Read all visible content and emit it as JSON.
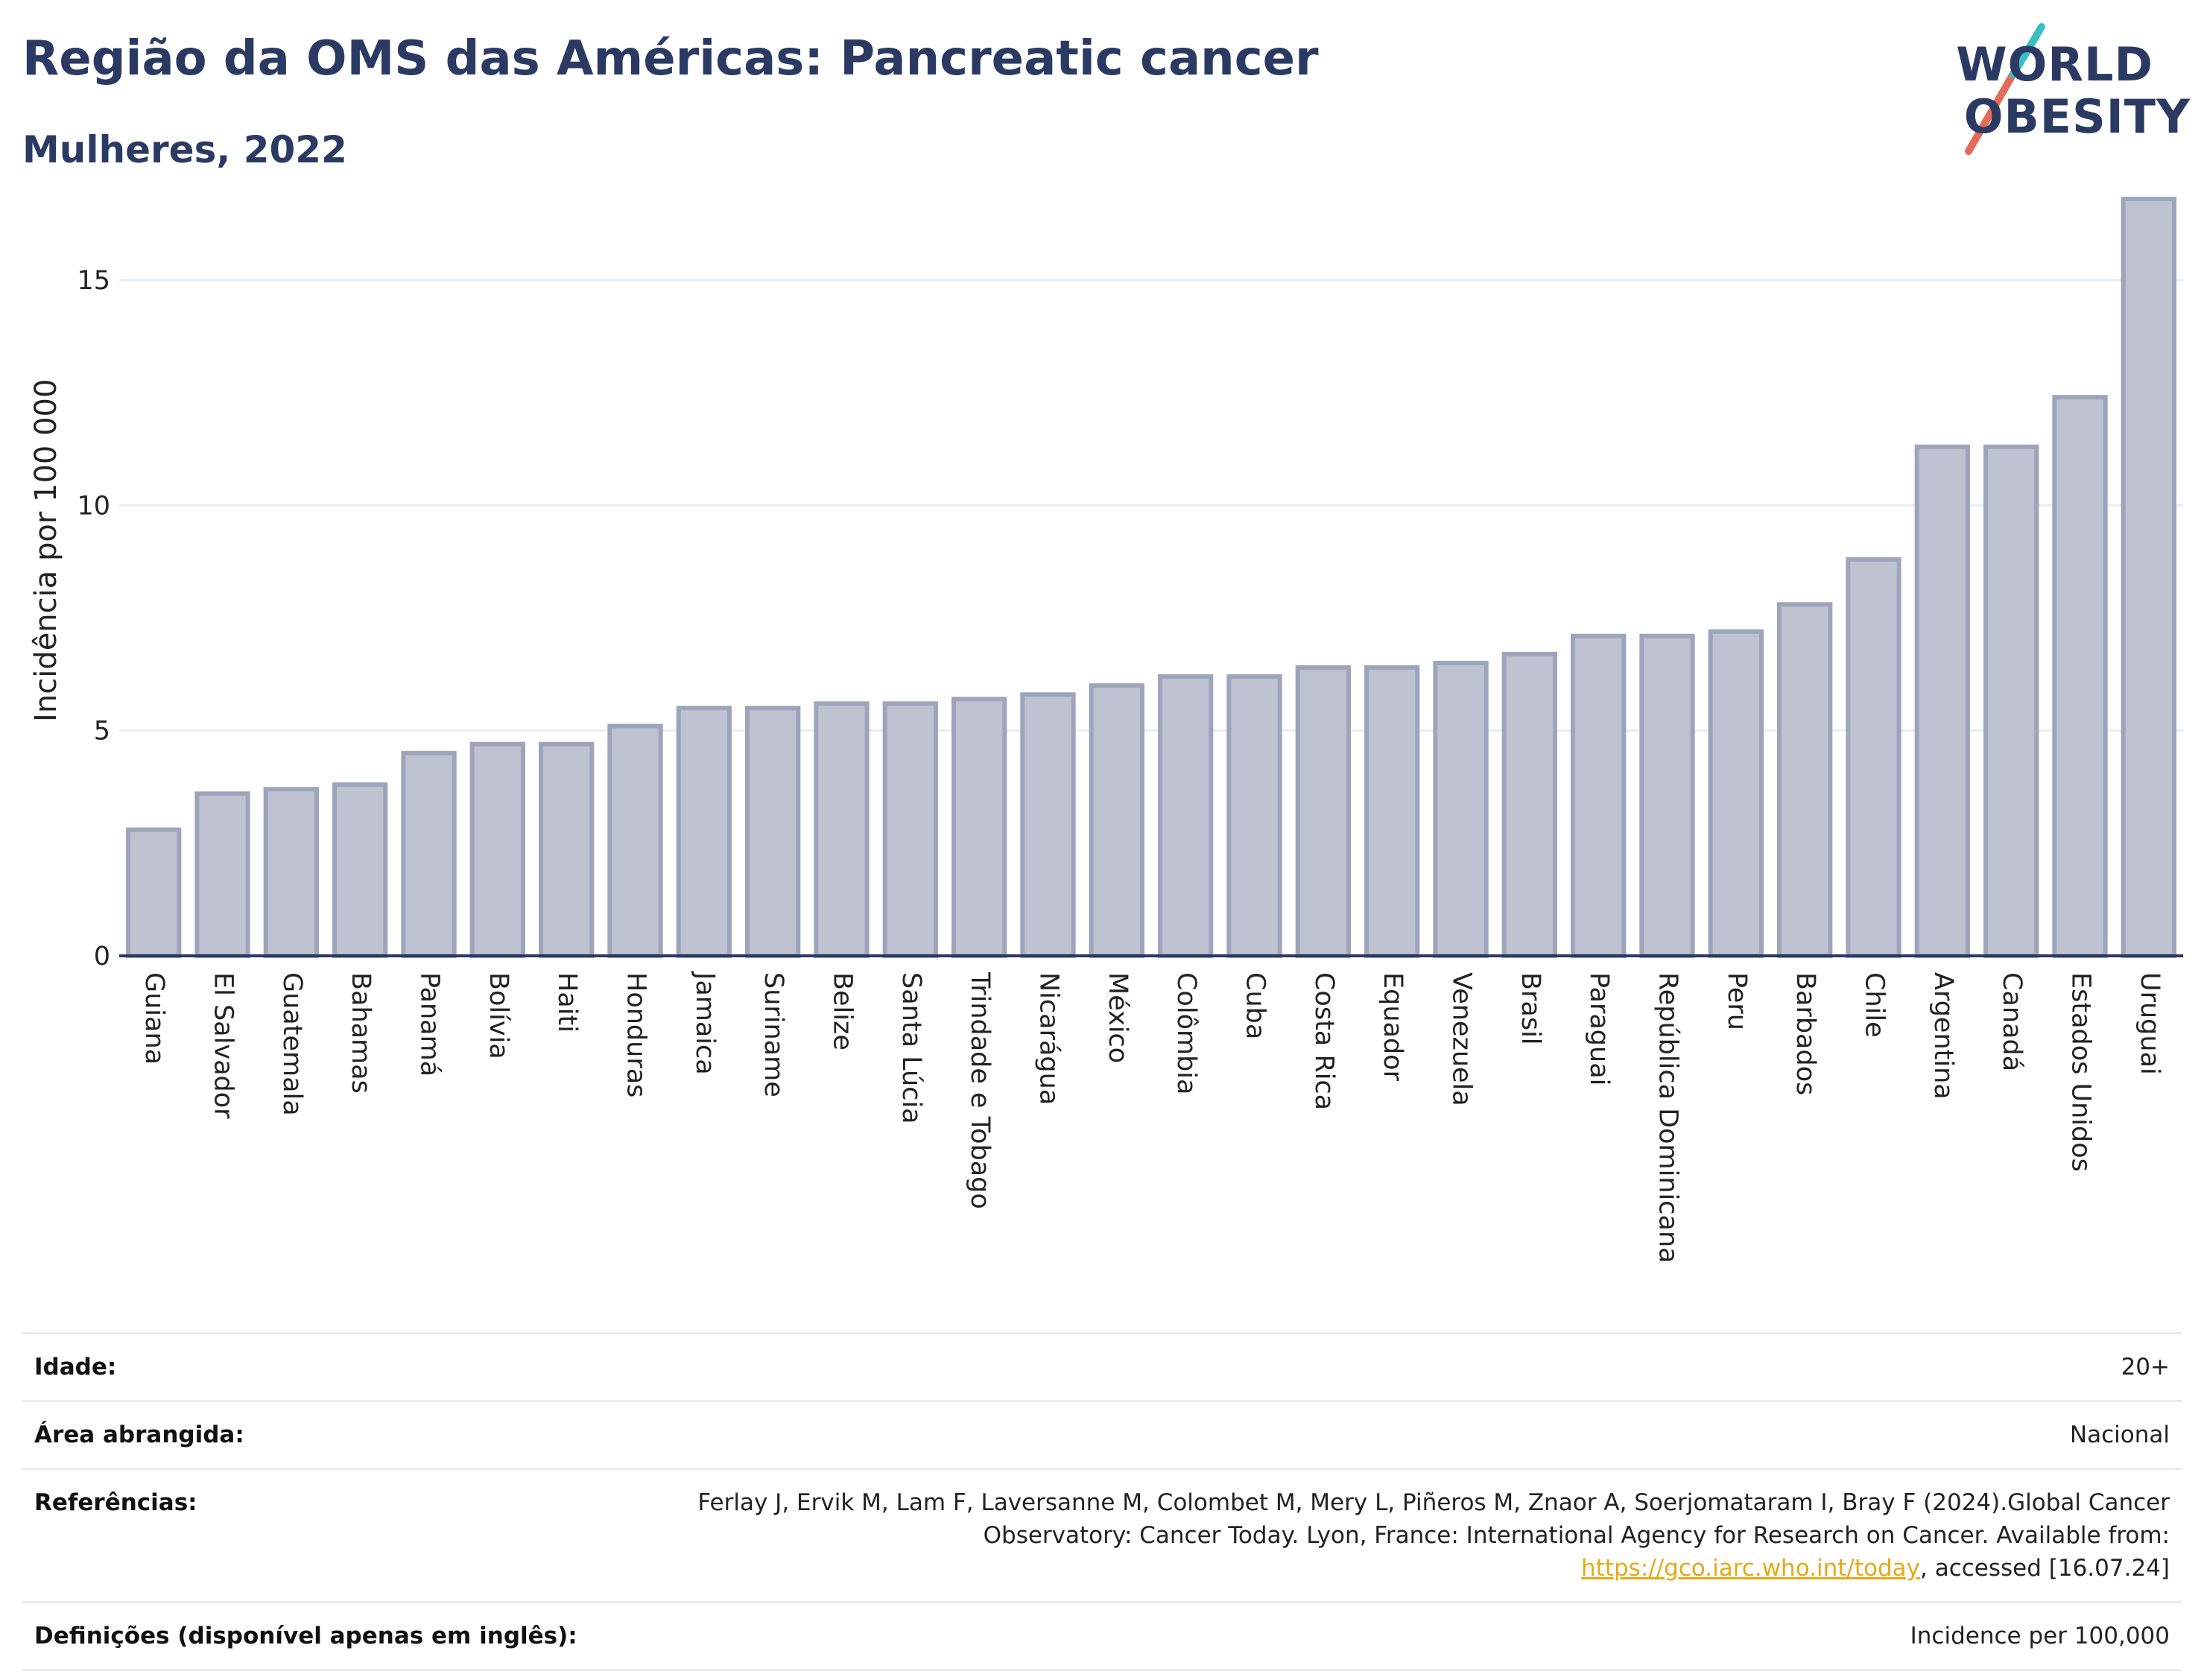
{
  "header": {
    "title": "Região da OMS das Américas: Pancreatic cancer",
    "subtitle": "Mulheres, 2022"
  },
  "logo": {
    "line1": "WORLD",
    "line2": "OBESITY",
    "colors": {
      "navy": "#2b3a63",
      "teal": "#3bbfc4",
      "coral": "#e36b59"
    }
  },
  "chart_data": {
    "type": "bar",
    "ylabel": "Incidência por 100 000",
    "ylim": [
      0,
      17
    ],
    "yticks": [
      0,
      5,
      10,
      15
    ],
    "grid": true,
    "categories": [
      "Guiana",
      "El Salvador",
      "Guatemala",
      "Bahamas",
      "Panamá",
      "Bolívia",
      "Haiti",
      "Honduras",
      "Jamaica",
      "Suriname",
      "Belize",
      "Santa Lúcia",
      "Trindade e Tobago",
      "Nicarágua",
      "México",
      "Colômbia",
      "Cuba",
      "Costa Rica",
      "Equador",
      "Venezuela",
      "Brasil",
      "Paraguai",
      "República Dominicana",
      "Peru",
      "Barbados",
      "Chile",
      "Argentina",
      "Canadá",
      "Estados Unidos",
      "Uruguai"
    ],
    "values": [
      2.8,
      3.6,
      3.7,
      3.8,
      4.5,
      4.7,
      4.7,
      5.1,
      5.5,
      5.5,
      5.6,
      5.6,
      5.7,
      5.8,
      6.0,
      6.2,
      6.2,
      6.4,
      6.4,
      6.5,
      6.7,
      7.1,
      7.1,
      7.2,
      7.8,
      8.8,
      11.3,
      11.3,
      12.4,
      16.8
    ],
    "colors": {
      "bar_fill": "#bfc2d0",
      "bar_stroke": "#9ea4bc",
      "grid": "#e6edf4",
      "axis": "#2b3a63"
    }
  },
  "info": {
    "age_label": "Idade:",
    "age_value": "20+",
    "area_label": "Área abrangida:",
    "area_value": "Nacional",
    "references_label": "Referências:",
    "references_text_1": "Ferlay J, Ervik M, Lam F, Laversanne M, Colombet M, Mery L, Piñeros M, Znaor A, Soerjomataram I, Bray F (2024).Global Cancer Observatory: Cancer Today. Lyon, France: International Agency for Research on Cancer. Available from: ",
    "references_link": "https://gco.iarc.who.int/today",
    "references_text_2": ", accessed [16.07.24]",
    "definitions_label": "Definições (disponível apenas em inglês):",
    "definitions_value": "Incidence per 100,000"
  }
}
